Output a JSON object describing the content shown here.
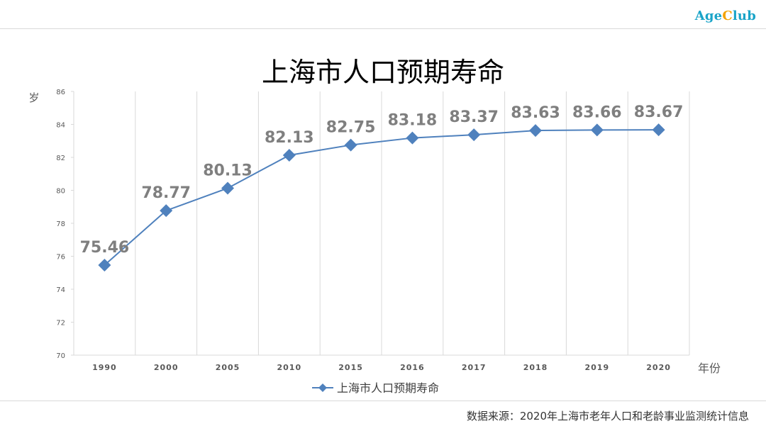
{
  "logo": {
    "part1": "Age",
    "part2": "C",
    "part3": "lub"
  },
  "source": "数据来源：2020年上海市老年人口和老龄事业监测统计信息",
  "colors": {
    "series": "#4f81bd",
    "label": "#7f7f7f",
    "grid": "#d9d9d9",
    "title": "#000000"
  },
  "chart_data": {
    "type": "line",
    "title": "上海市人口预期寿命",
    "ylabel": "岁",
    "xlabel": "年份",
    "categories": [
      "1990",
      "2000",
      "2005",
      "2010",
      "2015",
      "2016",
      "2017",
      "2018",
      "2019",
      "2020"
    ],
    "series": [
      {
        "name": "上海市人口预期寿命",
        "values": [
          75.46,
          78.77,
          80.13,
          82.13,
          82.75,
          83.18,
          83.37,
          83.63,
          83.66,
          83.67
        ],
        "labels": [
          "75.46",
          "78.77",
          "80.13",
          "82.13",
          "82.75",
          "83.18",
          "83.37",
          "83.63",
          "83.66",
          "83.67"
        ],
        "marker": "diamond"
      }
    ],
    "ylim": [
      70,
      86
    ],
    "yticks": [
      "70",
      "72",
      "74",
      "76",
      "78",
      "80",
      "82",
      "84",
      "86"
    ],
    "grid": "vertical",
    "legend": "bottom"
  }
}
